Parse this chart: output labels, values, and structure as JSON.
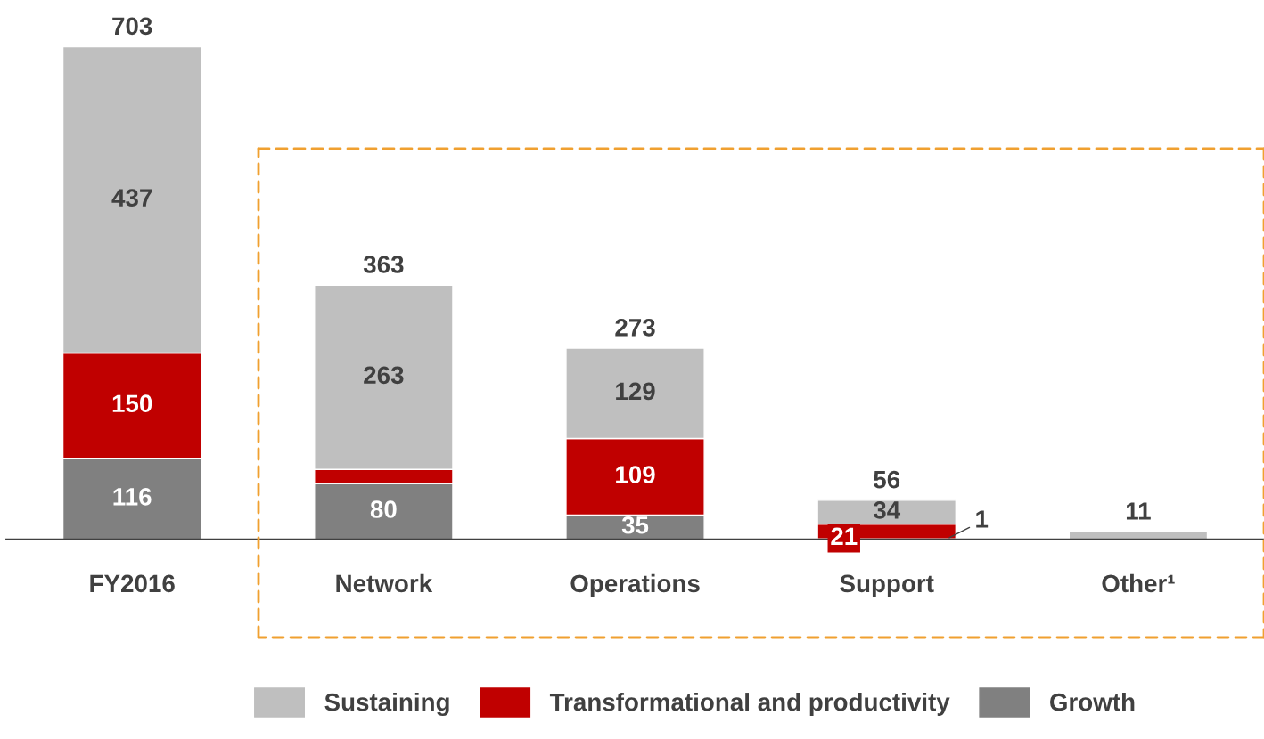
{
  "chart_data": {
    "type": "bar",
    "stacked": true,
    "categories": [
      "FY2016",
      "Network",
      "Operations",
      "Support",
      "Other¹"
    ],
    "series": [
      {
        "name": "Growth",
        "color": "#808080",
        "values": [
          116,
          80,
          35,
          1,
          null
        ],
        "value_labels": [
          "116",
          "80",
          "35",
          "1",
          null
        ]
      },
      {
        "name": "Transformational and productivity",
        "color": "#c00000",
        "values": [
          150,
          20,
          109,
          21,
          null
        ],
        "value_labels": [
          "150",
          null,
          "109",
          "21",
          null
        ]
      },
      {
        "name": "Sustaining",
        "color": "#bfbfbf",
        "values": [
          437,
          263,
          129,
          34,
          11
        ],
        "value_labels": [
          "437",
          "263",
          "129",
          "34",
          null
        ]
      }
    ],
    "totals": [
      "703",
      "363",
      "273",
      "56",
      "11"
    ],
    "grid": false,
    "legend": "bottom"
  }
}
